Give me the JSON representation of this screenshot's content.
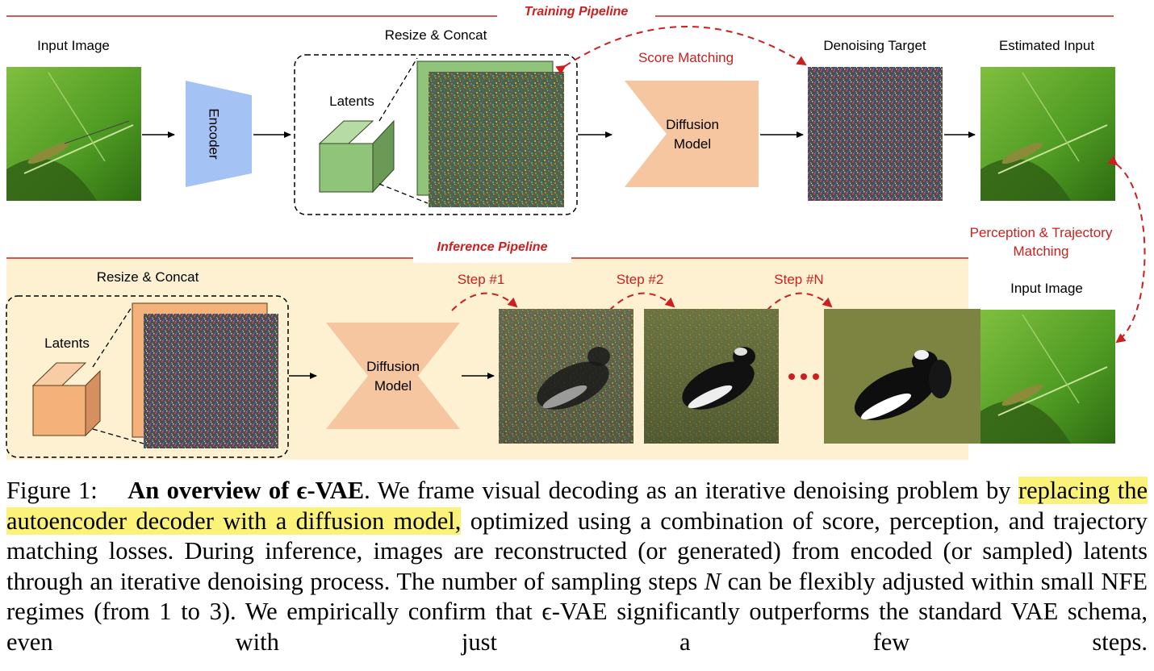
{
  "colors": {
    "accent_red": "#cc1f1f",
    "encoder_blue": "#a4c2f4",
    "diffusion_orange": "#f6c6a0",
    "latent_green": "#8fc47a",
    "latent_orange": "#f4b27a",
    "inference_bg": "#fdf1d2",
    "highlight": "#fbf27a"
  },
  "training": {
    "title": "Training Pipeline",
    "input_label": "Input Image",
    "encoder_label": "Encoder",
    "resize_label": "Resize & Concat",
    "latents_label": "Latents",
    "score_matching": "Score Matching",
    "diffusion_line1": "Diffusion",
    "diffusion_line2": "Model",
    "target_label": "Denoising Target",
    "estimated_label": "Estimated Input"
  },
  "matching": {
    "line1": "Perception & Trajectory",
    "line2": "Matching",
    "input_label": "Input Image"
  },
  "inference": {
    "title": "Inference Pipeline",
    "resize_label": "Resize & Concat",
    "latents_label": "Latents",
    "diffusion_line1": "Diffusion",
    "diffusion_line2": "Model",
    "step1": "Step #1",
    "step2": "Step #2",
    "stepN": "Step #N"
  },
  "caption": {
    "figure_label": "Figure 1:",
    "bold_title": "An overview of ϵ-VAE",
    "text_1": ". We frame visual decoding as an iterative denoising problem by ",
    "highlight": "replacing the autoencoder decoder with a diffusion model,",
    "text_2": " optimized using a combination of score, perception, and trajectory matching losses. During inference, images are reconstructed (or generated) from encoded (or sampled) latents through an iterative denoising process. The number of sampling steps ",
    "var_n": "N",
    "text_3": " can be flexibly adjusted within small NFE regimes (from 1 to 3). We empirically confirm that ϵ-VAE significantly outperforms the standard VAE schema, even with just a few steps."
  }
}
